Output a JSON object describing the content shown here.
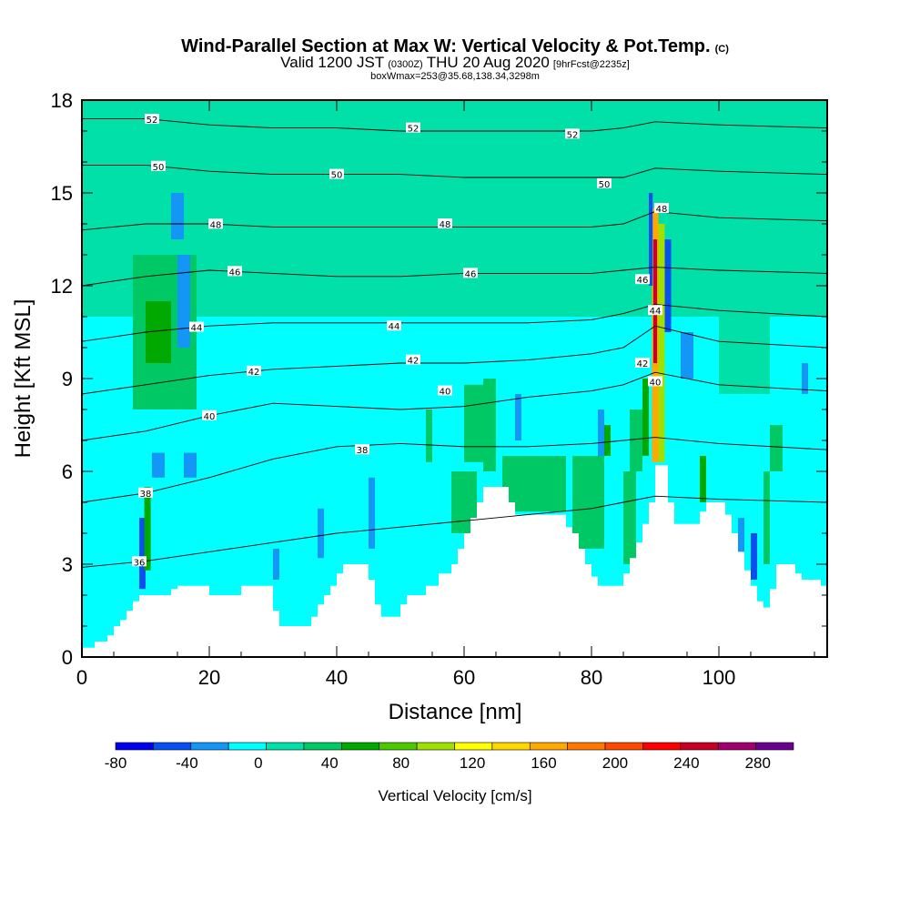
{
  "header": {
    "title_main": "Wind-Parallel Section at Max W: Vertical Velocity & Pot.Temp.",
    "title_mark": "(C)",
    "sub_prefix": "Valid 1200 JST",
    "sub_z": "(0300Z)",
    "sub_date": "THU 20 Aug 2020",
    "sub_fcst": "[9hrFcst@2235z]",
    "sub_box": "boxWmax=253@35.68,138.34,3298m"
  },
  "chart_data": {
    "type": "heatmap",
    "xlabel": "Distance [nm]",
    "ylabel": "Height [Kft MSL]",
    "xlim": [
      0,
      117
    ],
    "ylim": [
      0,
      18
    ],
    "x_ticks": [
      "0",
      "20",
      "40",
      "60",
      "80",
      "100"
    ],
    "x_tick_values": [
      0,
      20,
      40,
      60,
      80,
      100
    ],
    "y_ticks": [
      "0",
      "3",
      "6",
      "9",
      "12",
      "15",
      "18"
    ],
    "y_tick_values": [
      0,
      3,
      6,
      9,
      12,
      15,
      18
    ],
    "colorbar": {
      "label": "Vertical Velocity [cm/s]",
      "range": [
        -80,
        300
      ],
      "step": 20,
      "tick_labels": [
        "-80",
        "-40",
        "0",
        "40",
        "80",
        "120",
        "160",
        "200",
        "240",
        "280"
      ],
      "tick_values": [
        -80,
        -40,
        0,
        40,
        80,
        120,
        160,
        200,
        240,
        280
      ],
      "colors": [
        "#0000ee",
        "#0a4ff0",
        "#1496f6",
        "#00ffff",
        "#00e0a8",
        "#00c864",
        "#00a800",
        "#4cc800",
        "#a0e000",
        "#ffff00",
        "#ffd700",
        "#ffa800",
        "#ff7800",
        "#ff4800",
        "#ff0000",
        "#c80028",
        "#a0006e",
        "#6a0090"
      ]
    },
    "terrain": [
      [
        0,
        0.3
      ],
      [
        2,
        0.5
      ],
      [
        4,
        0.7
      ],
      [
        5,
        1.0
      ],
      [
        6,
        1.2
      ],
      [
        7,
        1.5
      ],
      [
        8,
        1.8
      ],
      [
        9,
        2.0
      ],
      [
        13,
        2.0
      ],
      [
        14,
        2.2
      ],
      [
        15,
        2.3
      ],
      [
        19,
        2.3
      ],
      [
        20,
        2.0
      ],
      [
        24,
        2.0
      ],
      [
        25,
        2.3
      ],
      [
        29,
        2.3
      ],
      [
        30,
        1.5
      ],
      [
        31,
        1.0
      ],
      [
        35,
        1.0
      ],
      [
        36,
        1.3
      ],
      [
        37,
        1.7
      ],
      [
        38,
        2.0
      ],
      [
        39,
        2.3
      ],
      [
        40,
        2.7
      ],
      [
        41,
        3.0
      ],
      [
        44,
        3.0
      ],
      [
        45,
        2.5
      ],
      [
        46,
        1.7
      ],
      [
        47,
        1.3
      ],
      [
        49,
        1.3
      ],
      [
        50,
        1.7
      ],
      [
        51,
        2.0
      ],
      [
        53,
        2.0
      ],
      [
        54,
        2.3
      ],
      [
        56,
        2.7
      ],
      [
        58,
        3.0
      ],
      [
        59,
        3.5
      ],
      [
        60,
        4.0
      ],
      [
        61,
        4.5
      ],
      [
        62,
        5.0
      ],
      [
        63,
        5.5
      ],
      [
        66,
        5.5
      ],
      [
        67,
        5.0
      ],
      [
        68,
        4.6
      ],
      [
        75,
        4.6
      ],
      [
        76,
        4.2
      ],
      [
        77,
        4.0
      ],
      [
        78,
        3.5
      ],
      [
        79,
        3.0
      ],
      [
        80,
        2.6
      ],
      [
        81,
        2.3
      ],
      [
        84,
        2.3
      ],
      [
        85,
        2.7
      ],
      [
        86,
        3.2
      ],
      [
        87,
        3.7
      ],
      [
        88,
        4.3
      ],
      [
        89,
        5.0
      ],
      [
        90,
        6.2
      ],
      [
        91,
        6.2
      ],
      [
        92,
        5.0
      ],
      [
        93,
        4.3
      ],
      [
        96,
        4.3
      ],
      [
        97,
        4.7
      ],
      [
        98,
        5.0
      ],
      [
        100,
        5.0
      ],
      [
        101,
        4.6
      ],
      [
        102,
        4.0
      ],
      [
        103,
        3.4
      ],
      [
        104,
        2.8
      ],
      [
        105,
        2.3
      ],
      [
        106,
        1.8
      ],
      [
        107,
        1.6
      ],
      [
        108,
        2.2
      ],
      [
        109,
        3.0
      ],
      [
        111,
        3.0
      ],
      [
        112,
        2.7
      ],
      [
        113,
        2.5
      ],
      [
        115,
        2.5
      ],
      [
        116,
        2.3
      ],
      [
        117,
        2.2
      ]
    ],
    "theta_contours": [
      {
        "level": 36,
        "label": "36",
        "y": [
          2.9,
          3.1,
          3.4,
          3.7,
          4.0,
          4.2,
          4.4,
          4.6,
          4.8,
          5.0,
          5.2,
          5.1,
          5.0
        ],
        "label_x": 9
      },
      {
        "level": 38,
        "label": "38",
        "y": [
          5.0,
          5.3,
          5.8,
          6.4,
          6.8,
          6.9,
          6.8,
          6.8,
          6.9,
          7.0,
          7.1,
          6.9,
          6.7
        ],
        "label_x": 10
      },
      {
        "level": 40,
        "label": "40",
        "y": [
          7.0,
          7.3,
          7.8,
          8.2,
          8.1,
          8.0,
          8.1,
          8.4,
          8.6,
          8.8,
          9.2,
          8.8,
          8.6
        ],
        "label_x": 20
      },
      {
        "level": 42,
        "label": "42",
        "y": [
          8.5,
          8.8,
          9.1,
          9.3,
          9.4,
          9.5,
          9.5,
          9.6,
          9.8,
          10.0,
          10.7,
          10.2,
          10.0
        ],
        "label_x": 27
      },
      {
        "level": 44,
        "label": "44",
        "y": [
          10.2,
          10.5,
          10.7,
          10.8,
          10.8,
          10.8,
          10.8,
          10.8,
          10.9,
          11.1,
          11.4,
          11.2,
          11.0
        ],
        "label_x": 18
      },
      {
        "level": 46,
        "label": "46",
        "y": [
          12.0,
          12.3,
          12.5,
          12.4,
          12.3,
          12.3,
          12.4,
          12.4,
          12.4,
          12.5,
          12.6,
          12.5,
          12.4
        ],
        "label_x": 24
      },
      {
        "level": 48,
        "label": "48",
        "y": [
          13.8,
          14.0,
          14.0,
          13.9,
          13.9,
          13.9,
          13.9,
          13.9,
          13.9,
          14.0,
          14.4,
          14.2,
          14.1
        ],
        "label_x": 21
      },
      {
        "level": 50,
        "label": "50",
        "y": [
          15.9,
          15.9,
          15.7,
          15.6,
          15.6,
          15.6,
          15.5,
          15.5,
          15.5,
          15.5,
          15.8,
          15.7,
          15.6
        ],
        "label_x": 12
      },
      {
        "level": 52,
        "label": "52",
        "y": [
          17.4,
          17.4,
          17.2,
          17.1,
          17.1,
          17.0,
          17.0,
          17.0,
          17.0,
          17.1,
          17.3,
          17.2,
          17.1
        ],
        "label_x": 11
      }
    ],
    "contour_x": [
      0,
      10,
      20,
      30,
      40,
      50,
      60,
      70,
      80,
      85,
      90,
      100,
      117
    ],
    "extra_contour_labels": [
      {
        "x": 44,
        "y": 6.7,
        "text": "38"
      },
      {
        "x": 57,
        "y": 8.6,
        "text": "40"
      },
      {
        "x": 52,
        "y": 9.6,
        "text": "42"
      },
      {
        "x": 49,
        "y": 10.7,
        "text": "44"
      },
      {
        "x": 61,
        "y": 12.4,
        "text": "46"
      },
      {
        "x": 57,
        "y": 14.0,
        "text": "48"
      },
      {
        "x": 40,
        "y": 15.6,
        "text": "50"
      },
      {
        "x": 82,
        "y": 15.3,
        "text": "50"
      },
      {
        "x": 52,
        "y": 17.1,
        "text": "52"
      },
      {
        "x": 77,
        "y": 16.9,
        "text": "52"
      },
      {
        "x": 88,
        "y": 9.5,
        "text": "42"
      },
      {
        "x": 90,
        "y": 8.9,
        "text": "40"
      },
      {
        "x": 90,
        "y": 11.2,
        "text": "44"
      },
      {
        "x": 88,
        "y": 12.2,
        "text": "46"
      },
      {
        "x": 91,
        "y": 14.5,
        "text": "48"
      }
    ],
    "velocity_cells": [
      {
        "x": [
          0,
          117
        ],
        "y": [
          0,
          18
        ],
        "w": -10
      },
      {
        "x": [
          0,
          117
        ],
        "y": [
          11,
          18
        ],
        "w": 10
      },
      {
        "x": [
          8,
          18
        ],
        "y": [
          8,
          13
        ],
        "w": 30
      },
      {
        "x": [
          10,
          14
        ],
        "y": [
          9.5,
          11.5
        ],
        "w": 40
      },
      {
        "x": [
          14,
          30
        ],
        "y": [
          13,
          18
        ],
        "w": 10
      },
      {
        "x": [
          40,
          56
        ],
        "y": [
          12,
          18
        ],
        "w": 10
      },
      {
        "x": [
          62,
          80
        ],
        "y": [
          11,
          18
        ],
        "w": 10
      },
      {
        "x": [
          96,
          117
        ],
        "y": [
          12,
          18
        ],
        "w": 10
      },
      {
        "x": [
          100,
          108
        ],
        "y": [
          8.5,
          12
        ],
        "w": 10
      },
      {
        "x": [
          15,
          17
        ],
        "y": [
          10,
          13
        ],
        "w": -30
      },
      {
        "x": [
          14,
          16
        ],
        "y": [
          13.5,
          15
        ],
        "w": -30
      },
      {
        "x": [
          16,
          18
        ],
        "y": [
          5.8,
          6.6
        ],
        "w": -30
      },
      {
        "x": [
          11,
          13
        ],
        "y": [
          5.8,
          6.6
        ],
        "w": -30
      },
      {
        "x": [
          9,
          10
        ],
        "y": [
          2.2,
          4.5
        ],
        "w": -50
      },
      {
        "x": [
          9.8,
          10.8
        ],
        "y": [
          2.8,
          5.5
        ],
        "w": 50
      },
      {
        "x": [
          30,
          31
        ],
        "y": [
          2.5,
          3.5
        ],
        "w": -30
      },
      {
        "x": [
          37,
          38
        ],
        "y": [
          3.2,
          4.8
        ],
        "w": -30
      },
      {
        "x": [
          45,
          46
        ],
        "y": [
          3.5,
          5.8
        ],
        "w": -30
      },
      {
        "x": [
          54,
          55
        ],
        "y": [
          6.3,
          8
        ],
        "w": 30
      },
      {
        "x": [
          58,
          62
        ],
        "y": [
          4,
          6
        ],
        "w": 30
      },
      {
        "x": [
          63,
          65
        ],
        "y": [
          6,
          9
        ],
        "w": 30
      },
      {
        "x": [
          68,
          69
        ],
        "y": [
          7,
          8.5
        ],
        "w": -30
      },
      {
        "x": [
          66,
          76
        ],
        "y": [
          4.7,
          6.5
        ],
        "w": 30
      },
      {
        "x": [
          77,
          82
        ],
        "y": [
          3.5,
          6.5
        ],
        "w": 30
      },
      {
        "x": [
          81,
          82
        ],
        "y": [
          6.5,
          8
        ],
        "w": -30
      },
      {
        "x": [
          82,
          83
        ],
        "y": [
          6.5,
          7.5
        ],
        "w": 40
      },
      {
        "x": [
          85,
          87
        ],
        "y": [
          3,
          6
        ],
        "w": 30
      },
      {
        "x": [
          88,
          89
        ],
        "y": [
          6.5,
          9
        ],
        "w": 40
      },
      {
        "x": [
          89.5,
          90.5
        ],
        "y": [
          6.3,
          14.5
        ],
        "w": 140
      },
      {
        "x": [
          89.7,
          90.3
        ],
        "y": [
          9.5,
          13.5
        ],
        "w": 230
      },
      {
        "x": [
          90.5,
          91.5
        ],
        "y": [
          6.3,
          14
        ],
        "w": 90
      },
      {
        "x": [
          89,
          89.6
        ],
        "y": [
          12,
          15
        ],
        "w": -50
      },
      {
        "x": [
          91.5,
          92.5
        ],
        "y": [
          10.5,
          13.5
        ],
        "w": -50
      },
      {
        "x": [
          94,
          96
        ],
        "y": [
          9,
          10.5
        ],
        "w": -30
      },
      {
        "x": [
          97,
          98
        ],
        "y": [
          5,
          6.5
        ],
        "w": 40
      },
      {
        "x": [
          103,
          104
        ],
        "y": [
          3,
          4.5
        ],
        "w": -30
      },
      {
        "x": [
          105,
          106
        ],
        "y": [
          2.5,
          4
        ],
        "w": -50
      },
      {
        "x": [
          107,
          108
        ],
        "y": [
          3,
          6
        ],
        "w": 30
      },
      {
        "x": [
          108,
          110
        ],
        "y": [
          6,
          7.5
        ],
        "w": 30
      },
      {
        "x": [
          113,
          114
        ],
        "y": [
          8.5,
          9.5
        ],
        "w": -30
      },
      {
        "x": [
          60,
          64
        ],
        "y": [
          6.3,
          8.8
        ],
        "w": 30
      },
      {
        "x": [
          86,
          88
        ],
        "y": [
          6,
          8
        ],
        "w": 30
      }
    ]
  }
}
